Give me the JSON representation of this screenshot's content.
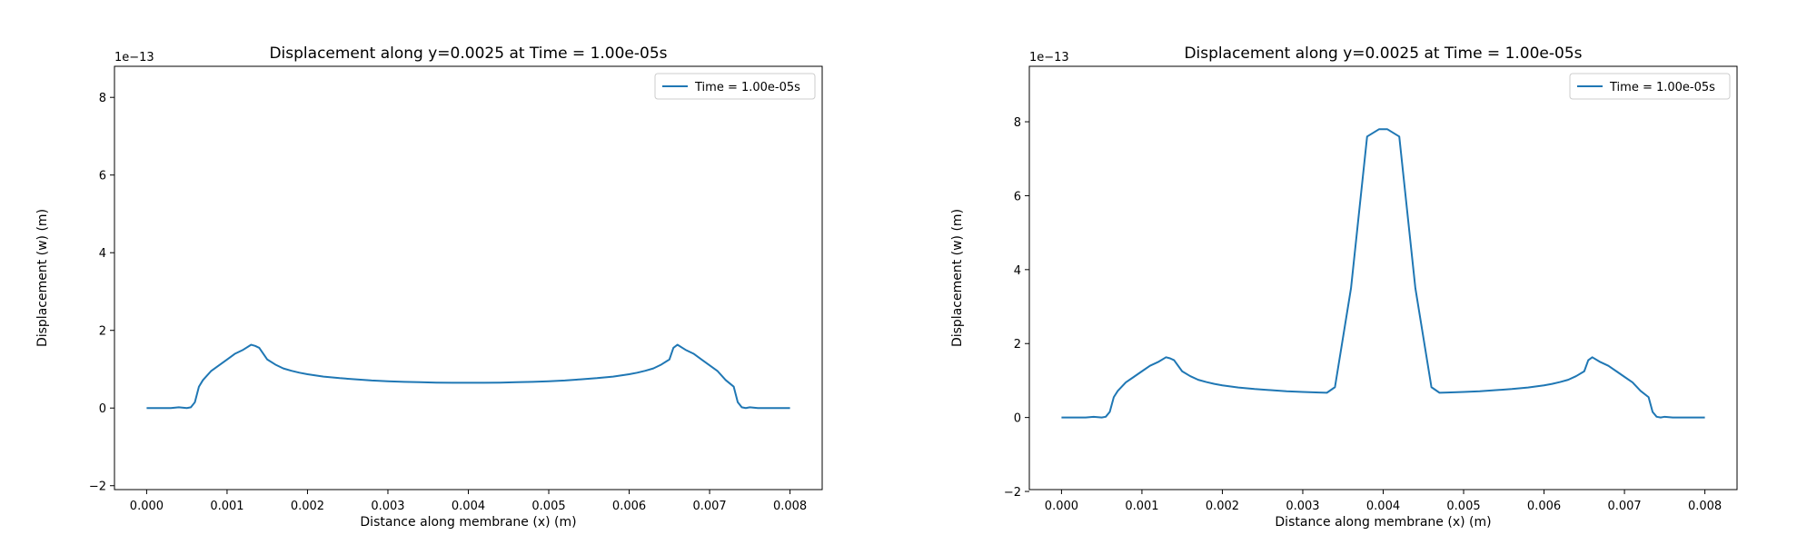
{
  "chart_data": [
    {
      "type": "line",
      "title": "Displacement along y=0.0025 at Time = 1.00e-05s",
      "xlabel": "Distance along membrane (x) (m)",
      "ylabel": "Displacement (w) (m)",
      "y_exponent_label": "1e−13",
      "xlim": [
        -0.0004,
        0.0084
      ],
      "ylim": [
        -2.1,
        8.8
      ],
      "x_ticks": [
        0,
        0.001,
        0.002,
        0.003,
        0.004,
        0.005,
        0.006,
        0.007,
        0.008
      ],
      "x_tick_labels": [
        "0.000",
        "0.001",
        "0.002",
        "0.003",
        "0.004",
        "0.005",
        "0.006",
        "0.007",
        "0.008"
      ],
      "y_ticks": [
        -2,
        0,
        2,
        4,
        6,
        8
      ],
      "y_tick_labels": [
        "−2",
        "0",
        "2",
        "4",
        "6",
        "8"
      ],
      "grid": false,
      "legend_position": "top-right",
      "color": "#1f77b4",
      "series": [
        {
          "name": "Time = 1.00e-05s",
          "x": [
            0,
            0.0001,
            0.0002,
            0.0003,
            0.0004,
            0.0005,
            0.00055,
            0.0006,
            0.00065,
            0.0007,
            0.0008,
            0.0009,
            0.001,
            0.0011,
            0.0012,
            0.0013,
            0.00135,
            0.0014,
            0.0015,
            0.0016,
            0.0017,
            0.0018,
            0.0019,
            0.002,
            0.0022,
            0.0024,
            0.0026,
            0.0028,
            0.003,
            0.0032,
            0.0034,
            0.0036,
            0.0038,
            0.004,
            0.0042,
            0.0044,
            0.0046,
            0.0048,
            0.005,
            0.0052,
            0.0054,
            0.0056,
            0.0058,
            0.006,
            0.0061,
            0.0062,
            0.0063,
            0.0064,
            0.0065,
            0.00655,
            0.0066,
            0.0067,
            0.0068,
            0.0069,
            0.007,
            0.0071,
            0.0072,
            0.0073,
            0.00735,
            0.0074,
            0.00745,
            0.0075,
            0.0076,
            0.0077,
            0.0078,
            0.0079,
            0.008
          ],
          "y": [
            0,
            0,
            0,
            0,
            0.02,
            0,
            0.02,
            0.15,
            0.55,
            0.72,
            0.95,
            1.1,
            1.25,
            1.4,
            1.5,
            1.63,
            1.6,
            1.55,
            1.25,
            1.12,
            1.02,
            0.96,
            0.91,
            0.87,
            0.81,
            0.77,
            0.74,
            0.71,
            0.69,
            0.675,
            0.665,
            0.655,
            0.652,
            0.65,
            0.652,
            0.655,
            0.665,
            0.675,
            0.69,
            0.71,
            0.74,
            0.77,
            0.81,
            0.87,
            0.91,
            0.96,
            1.02,
            1.12,
            1.25,
            1.55,
            1.63,
            1.5,
            1.4,
            1.25,
            1.1,
            0.95,
            0.72,
            0.55,
            0.15,
            0.02,
            0,
            0.02,
            0,
            0,
            0,
            0,
            0
          ]
        }
      ]
    },
    {
      "type": "line",
      "title": "Displacement along y=0.0025 at Time = 1.00e-05s",
      "xlabel": "Distance along membrane (x) (m)",
      "ylabel": "Displacement (w) (m)",
      "y_exponent_label": "1e−13",
      "xlim": [
        -0.0004,
        0.0084
      ],
      "ylim": [
        -1.95,
        9.5
      ],
      "x_ticks": [
        0,
        0.001,
        0.002,
        0.003,
        0.004,
        0.005,
        0.006,
        0.007,
        0.008
      ],
      "x_tick_labels": [
        "0.000",
        "0.001",
        "0.002",
        "0.003",
        "0.004",
        "0.005",
        "0.006",
        "0.007",
        "0.008"
      ],
      "y_ticks": [
        -2,
        0,
        2,
        4,
        6,
        8
      ],
      "y_tick_labels": [
        "−2",
        "0",
        "2",
        "4",
        "6",
        "8"
      ],
      "grid": false,
      "legend_position": "top-right",
      "color": "#1f77b4",
      "series": [
        {
          "name": "Time = 1.00e-05s",
          "x": [
            0,
            0.0001,
            0.0002,
            0.0003,
            0.0004,
            0.0005,
            0.00055,
            0.0006,
            0.00065,
            0.0007,
            0.0008,
            0.0009,
            0.001,
            0.0011,
            0.0012,
            0.0013,
            0.00135,
            0.0014,
            0.0015,
            0.0016,
            0.0017,
            0.0018,
            0.0019,
            0.002,
            0.0022,
            0.0024,
            0.0026,
            0.0028,
            0.003,
            0.0032,
            0.0033,
            0.0034,
            0.0036,
            0.0038,
            0.00395,
            0.004,
            0.00405,
            0.0042,
            0.0044,
            0.0046,
            0.0047,
            0.0048,
            0.005,
            0.0052,
            0.0054,
            0.0056,
            0.0058,
            0.006,
            0.0061,
            0.0062,
            0.0063,
            0.0064,
            0.0065,
            0.00655,
            0.0066,
            0.0067,
            0.0068,
            0.0069,
            0.007,
            0.0071,
            0.0072,
            0.0073,
            0.00735,
            0.0074,
            0.00745,
            0.0075,
            0.0076,
            0.0077,
            0.0078,
            0.0079,
            0.008
          ],
          "y": [
            0,
            0,
            0,
            0,
            0.02,
            0,
            0.02,
            0.15,
            0.55,
            0.72,
            0.95,
            1.1,
            1.25,
            1.4,
            1.5,
            1.63,
            1.6,
            1.55,
            1.25,
            1.12,
            1.02,
            0.96,
            0.91,
            0.87,
            0.81,
            0.77,
            0.74,
            0.71,
            0.69,
            0.675,
            0.67,
            0.82,
            3.5,
            7.6,
            7.8,
            7.8,
            7.8,
            7.6,
            3.5,
            0.82,
            0.67,
            0.675,
            0.69,
            0.71,
            0.74,
            0.77,
            0.81,
            0.87,
            0.91,
            0.96,
            1.02,
            1.12,
            1.25,
            1.55,
            1.63,
            1.5,
            1.4,
            1.25,
            1.1,
            0.95,
            0.72,
            0.55,
            0.15,
            0.02,
            0,
            0.02,
            0,
            0,
            0,
            0,
            0
          ]
        }
      ]
    }
  ]
}
